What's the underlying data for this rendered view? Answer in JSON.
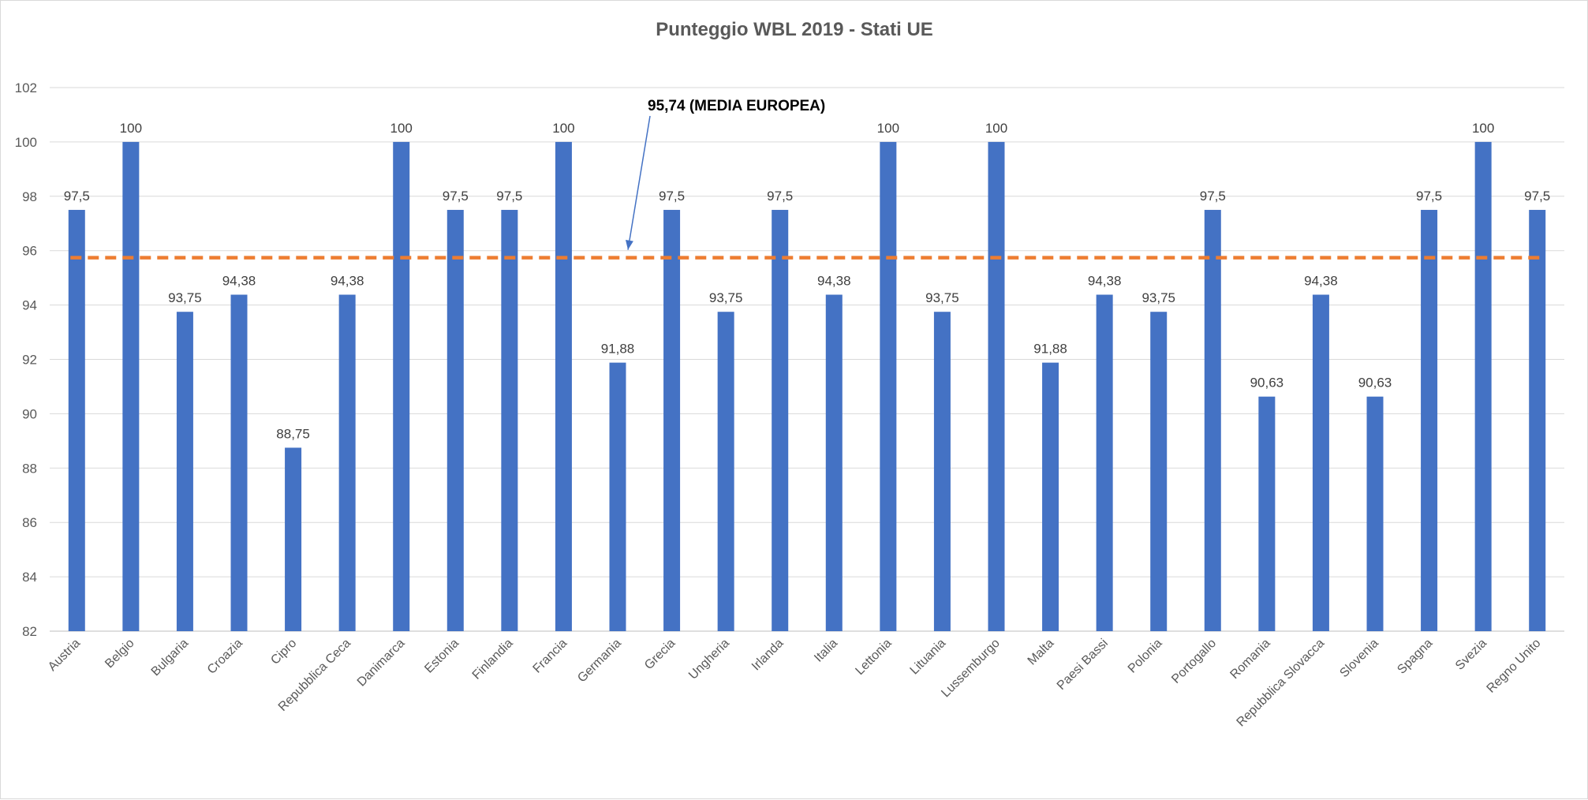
{
  "chart_data": {
    "type": "bar",
    "title": "Punteggio WBL 2019 - Stati UE",
    "xlabel": "",
    "ylabel": "",
    "ylim": [
      82,
      102
    ],
    "yticks": [
      82,
      84,
      86,
      88,
      90,
      92,
      94,
      96,
      98,
      100,
      102
    ],
    "grid": true,
    "legend": "none",
    "categories": [
      "Austria",
      "Belgio",
      "Bulgaria",
      "Croazia",
      "Cipro",
      "Repubblica Ceca",
      "Danimarca",
      "Estonia",
      "Finlandia",
      "Francia",
      "Germania",
      "Grecia",
      "Ungheria",
      "Irlanda",
      "Italia",
      "Lettonia",
      "Lituania",
      "Lussemburgo",
      "Malta",
      "Paesi Bassi",
      "Polonia",
      "Portogallo",
      "Romania",
      "Repubblica Slovacca",
      "Slovenia",
      "Spagna",
      "Svezia",
      "Regno Unito"
    ],
    "values": [
      97.5,
      100,
      93.75,
      94.38,
      88.75,
      94.38,
      100,
      97.5,
      97.5,
      100,
      91.88,
      97.5,
      93.75,
      97.5,
      94.38,
      100,
      93.75,
      100,
      91.88,
      94.38,
      93.75,
      97.5,
      90.63,
      94.38,
      90.63,
      97.5,
      100,
      97.5
    ],
    "data_labels": [
      "97,5",
      "100",
      "93,75",
      "94,38",
      "88,75",
      "94,38",
      "100",
      "97,5",
      "97,5",
      "100",
      "91,88",
      "97,5",
      "93,75",
      "97,5",
      "94,38",
      "100",
      "93,75",
      "100",
      "91,88",
      "94,38",
      "93,75",
      "97,5",
      "90,63",
      "94,38",
      "90,63",
      "97,5",
      "100",
      "97,5"
    ],
    "bar_color": "#4472C4",
    "reference_line": {
      "value": 95.74,
      "label": "95,74 (MEDIA EUROPEA)",
      "color": "#ED7D31",
      "style": "dashed"
    }
  }
}
